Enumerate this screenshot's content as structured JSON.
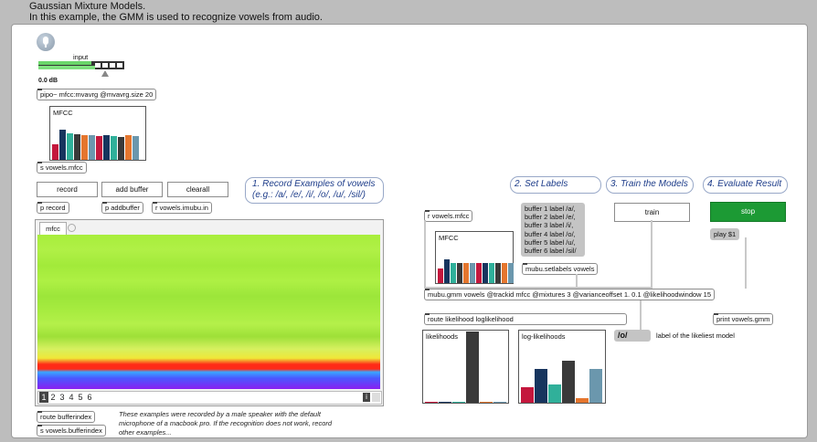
{
  "header": {
    "title": "Gaussian Mixture Models.",
    "subtitle": "In this example, the GMM is used to recognize vowels from audio."
  },
  "audio": {
    "input_label": "input",
    "level_label": "0.0 dB"
  },
  "objects": {
    "pipo": "pipo~ mfcc:mvavrg @mvavrg.size 20",
    "send_mfcc": "s vowels.mfcc",
    "p_record": "p record",
    "p_addbuffer": "p addbuffer",
    "r_imubu": "r vowels.imubu.in",
    "route_bufferindex": "route bufferindex",
    "s_bufferindex": "s vowels.bufferindex",
    "r_mfcc": "r vowels.mfcc",
    "setlabels": "mubu.setlabels vowels",
    "mubu_gmm": "mubu.gmm vowels @trackid mfcc @mixtures 3 @varianceoffset 1. 0.1 @likelihoodwindow 15",
    "route_likelihood": "route likelihood loglikelihood",
    "print_gmm": "print vowels.gmm",
    "play_msg": "play $1",
    "result_msg": "/o/"
  },
  "buttons": {
    "record": "record",
    "add_buffer": "add buffer",
    "clearall": "clearall",
    "train": "train",
    "stop": "stop"
  },
  "comments": {
    "step1_line1": "1. Record Examples of vowels",
    "step1_line2": "(e.g.: /a/, /e/, /i/, /o/, /u/, /sil/)",
    "step2": "2. Set Labels",
    "step3": "3. Train the Models",
    "step4": "4. Evaluate Result",
    "likeliest": "label of the likeliest model",
    "note1": "These examples were recorded by a male speaker with the default",
    "note2": "microphone of a macbook pro. If the recognition does not work, record",
    "note3": "other examples..."
  },
  "labels_message": [
    "buffer 1 label /a/,",
    "buffer 2 label /e/,",
    "buffer 3 label /i/,",
    "buffer 4 label /o/,",
    "buffer 5 label /u/,",
    "buffer 6 label /sil/"
  ],
  "imubu": {
    "tab": "mfcc",
    "buffers": [
      "1",
      "2",
      "3",
      "4",
      "5",
      "6"
    ],
    "selected_buffer": "1",
    "info_button": "i"
  },
  "plots": {
    "mfcc_left_label": "MFCC",
    "mfcc_right_label": "MFCC",
    "likelihoods_label": "likelihoods",
    "loglik_label": "log-likelihoods"
  },
  "bar_values": {
    "mfcc_left": [
      0.38,
      0.72,
      0.62,
      0.6,
      0.58,
      0.58,
      0.56,
      0.58,
      0.56,
      0.55,
      0.58,
      0.57
    ],
    "mfcc_right": [
      0.36,
      0.6,
      0.5,
      0.5,
      0.5,
      0.5,
      0.5,
      0.5,
      0.5,
      0.5,
      0.5,
      0.5
    ],
    "likelihoods": [
      0.01,
      0.01,
      0.01,
      0.99,
      0.01,
      0.01
    ],
    "log_likelihoods": [
      0.25,
      0.54,
      0.29,
      0.66,
      0.07,
      0.53
    ]
  },
  "colors": {
    "bars": [
      "#c4173d",
      "#17355e",
      "#30b09a",
      "#3a3a3a",
      "#e5762e",
      "#6b97ad"
    ],
    "stop_button": "#1c9a34",
    "meter": "#6ad66a"
  }
}
